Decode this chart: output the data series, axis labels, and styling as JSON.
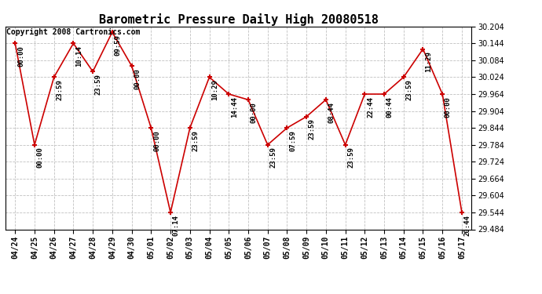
{
  "title": "Barometric Pressure Daily High 20080518",
  "copyright": "Copyright 2008 Cartronics.com",
  "x_labels": [
    "04/24",
    "04/25",
    "04/26",
    "04/27",
    "04/28",
    "04/29",
    "04/30",
    "05/01",
    "05/02",
    "05/03",
    "05/04",
    "05/05",
    "05/06",
    "05/07",
    "05/08",
    "05/09",
    "05/10",
    "05/11",
    "05/12",
    "05/13",
    "05/14",
    "05/15",
    "05/16",
    "05/17"
  ],
  "y_values": [
    30.144,
    29.784,
    30.024,
    30.144,
    30.044,
    30.184,
    30.064,
    29.844,
    29.544,
    29.844,
    30.024,
    29.964,
    29.944,
    29.784,
    29.844,
    29.884,
    29.944,
    29.784,
    29.964,
    29.964,
    30.024,
    30.124,
    29.964,
    29.544
  ],
  "point_labels": [
    "00:00",
    "00:00",
    "23:59",
    "10:14",
    "23:59",
    "09:59",
    "00:00",
    "00:00",
    "07:14",
    "23:59",
    "10:29",
    "14:44",
    "00:00",
    "23:59",
    "07:59",
    "23:59",
    "08:44",
    "23:59",
    "22:44",
    "00:44",
    "23:59",
    "11:29",
    "00:00",
    "20:44"
  ],
  "ylim_min": 29.484,
  "ylim_max": 30.204,
  "ytick_step": 0.06,
  "line_color": "#cc0000",
  "marker_color": "#cc0000",
  "bg_color": "#ffffff",
  "grid_color": "#c0c0c0",
  "title_fontsize": 11,
  "label_fontsize": 6.5,
  "copyright_fontsize": 7,
  "tick_fontsize": 7
}
